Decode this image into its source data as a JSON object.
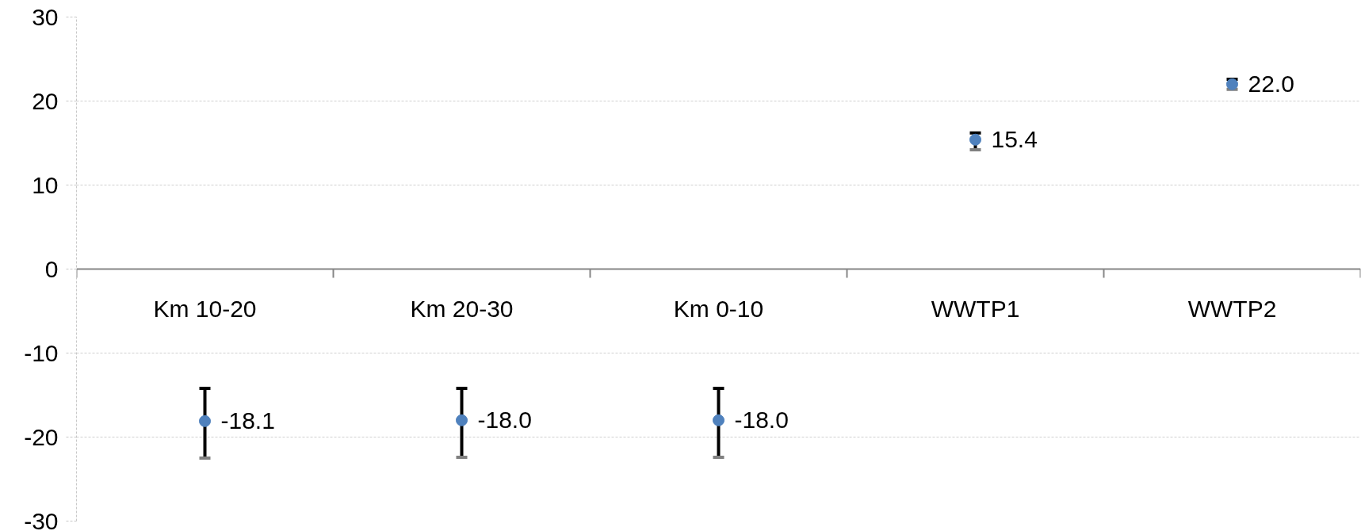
{
  "chart_data": {
    "type": "scatter",
    "categories": [
      "Km 10-20",
      "Km 20-30",
      "Km 0-10",
      "WWTP1",
      "WWTP2"
    ],
    "values": [
      -18.1,
      -18.0,
      -18.0,
      15.4,
      22.0
    ],
    "errors": [
      [
        -22.5,
        -14.2
      ],
      [
        -22.4,
        -14.2
      ],
      [
        -22.4,
        -14.2
      ],
      [
        14.2,
        16.2
      ],
      [
        21.4,
        22.6
      ]
    ],
    "value_labels": [
      "-18.1",
      "-18.0",
      "-18.0",
      "15.4",
      "22.0"
    ],
    "color": "#4f81bd",
    "marker": "circle",
    "grid": "y",
    "ylim": [
      -30,
      30
    ],
    "yticks": [
      -30,
      -20,
      -10,
      0,
      10,
      20,
      30
    ]
  }
}
